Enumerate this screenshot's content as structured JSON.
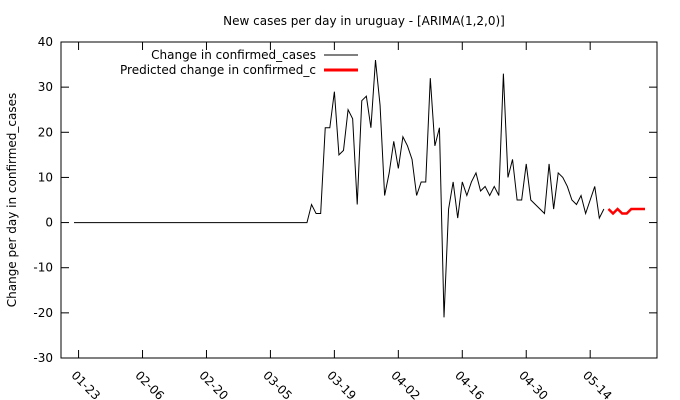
{
  "chart_data": {
    "type": "line",
    "title": "New cases per day in uruguay -  [ARIMA(1,2,0)]",
    "xlabel": "",
    "ylabel": "Change per day in confirmed_cases",
    "ylim": [
      -30,
      40
    ],
    "yticks": [
      "-30",
      "-20",
      "-10",
      "0",
      "10",
      "20",
      "30",
      "40"
    ],
    "x_start": "01-22",
    "x_end": "05-26",
    "xticks": [
      "01-23",
      "02-06",
      "02-20",
      "03-05",
      "03-19",
      "04-02",
      "04-16",
      "04-30",
      "05-14"
    ],
    "grid": false,
    "legend_position": "top-right",
    "series": [
      {
        "name": "Change in confirmed_cases",
        "color": "#000000",
        "x": [
          "01-22",
          "01-23",
          "01-24",
          "01-25",
          "01-26",
          "01-27",
          "01-28",
          "01-29",
          "01-30",
          "01-31",
          "02-01",
          "02-02",
          "02-03",
          "02-04",
          "02-05",
          "02-06",
          "02-07",
          "02-08",
          "02-09",
          "02-10",
          "02-11",
          "02-12",
          "02-13",
          "02-14",
          "02-15",
          "02-16",
          "02-17",
          "02-18",
          "02-19",
          "02-20",
          "02-21",
          "02-22",
          "02-23",
          "02-24",
          "02-25",
          "02-26",
          "02-27",
          "02-28",
          "02-29",
          "03-01",
          "03-02",
          "03-03",
          "03-04",
          "03-05",
          "03-06",
          "03-07",
          "03-08",
          "03-09",
          "03-10",
          "03-11",
          "03-12",
          "03-13",
          "03-14",
          "03-15",
          "03-16",
          "03-17",
          "03-18",
          "03-19",
          "03-20",
          "03-21",
          "03-22",
          "03-23",
          "03-24",
          "03-25",
          "03-26",
          "03-27",
          "03-28",
          "03-29",
          "03-30",
          "03-31",
          "04-01",
          "04-02",
          "04-03",
          "04-04",
          "04-05",
          "04-06",
          "04-07",
          "04-08",
          "04-09",
          "04-10",
          "04-11",
          "04-12",
          "04-13",
          "04-14",
          "04-15",
          "04-16",
          "04-17",
          "04-18",
          "04-19",
          "04-20",
          "04-21",
          "04-22",
          "04-23",
          "04-24",
          "04-25",
          "04-26",
          "04-27",
          "04-28",
          "04-29",
          "04-30",
          "05-01",
          "05-02",
          "05-03",
          "05-04",
          "05-05",
          "05-06",
          "05-07",
          "05-08",
          "05-09",
          "05-10",
          "05-11",
          "05-12",
          "05-13",
          "05-14",
          "05-15",
          "05-16",
          "05-17"
        ],
        "values": [
          0,
          0,
          0,
          0,
          0,
          0,
          0,
          0,
          0,
          0,
          0,
          0,
          0,
          0,
          0,
          0,
          0,
          0,
          0,
          0,
          0,
          0,
          0,
          0,
          0,
          0,
          0,
          0,
          0,
          0,
          0,
          0,
          0,
          0,
          0,
          0,
          0,
          0,
          0,
          0,
          0,
          0,
          0,
          0,
          0,
          0,
          0,
          0,
          0,
          0,
          0,
          0,
          4,
          2,
          2,
          21,
          21,
          29,
          15,
          16,
          25,
          23,
          4,
          27,
          28,
          21,
          36,
          26,
          6,
          11,
          18,
          12,
          19,
          17,
          14,
          6,
          9,
          9,
          32,
          17,
          21,
          -21,
          3,
          9,
          1,
          9,
          6,
          9,
          11,
          7,
          8,
          6,
          8,
          6,
          33,
          10,
          14,
          5,
          5,
          13,
          5,
          4,
          3,
          2,
          13,
          3,
          11,
          10,
          8,
          5,
          4,
          6,
          2,
          5,
          8,
          1,
          3
        ]
      },
      {
        "name": "Predicted change in confirmed_c",
        "color": "#ff0000",
        "x": [
          "05-18",
          "05-19",
          "05-20",
          "05-21",
          "05-22",
          "05-23",
          "05-24",
          "05-25",
          "05-26"
        ],
        "values": [
          3,
          2,
          3,
          2,
          2,
          3,
          3,
          3,
          3
        ]
      }
    ]
  }
}
